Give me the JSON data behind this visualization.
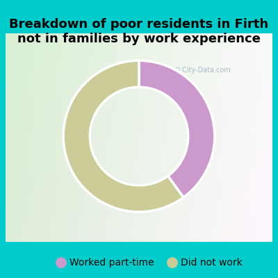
{
  "title": "Breakdown of poor residents in Firth\nnot in families by work experience",
  "slices": [
    {
      "label": "Worked part-time",
      "value": 40,
      "color": "#cc99cc"
    },
    {
      "label": "Did not work",
      "value": 60,
      "color": "#cccc99"
    }
  ],
  "background_color": "#00cccc",
  "title_fontsize": 13,
  "legend_fontsize": 10,
  "donut_width": 0.35,
  "start_angle": 90
}
